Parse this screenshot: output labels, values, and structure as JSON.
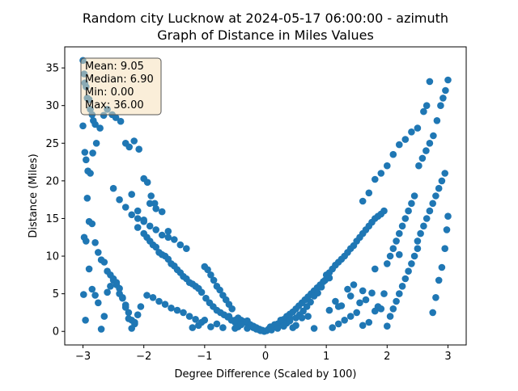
{
  "chart_data": {
    "type": "scatter",
    "title_line1": "Random city Lucknow at 2024-05-17 06:00:00  - azimuth",
    "title_line2": "Graph of Distance in Miles Values",
    "xlabel": "Degree Difference (Scaled by 100)",
    "ylabel": "Distance (Miles)",
    "xlim": [
      -3.3,
      3.3
    ],
    "ylim": [
      -1.8,
      37.8
    ],
    "xticks": [
      -3,
      -2,
      -1,
      0,
      1,
      2,
      3
    ],
    "yticks": [
      0,
      5,
      10,
      15,
      20,
      25,
      30,
      35
    ],
    "grid": false,
    "marker_color": "#1f77b4",
    "stats": {
      "mean": "Mean: 9.05",
      "median": "Median: 6.90",
      "min": "Min: 0.00",
      "max": "Max: 36.00"
    },
    "x": [
      -3.0,
      -2.98,
      -2.97,
      -2.95,
      -2.93,
      -2.9,
      -2.88,
      -2.85,
      -2.83,
      -2.8,
      -3.0,
      -2.97,
      -2.95,
      -2.93,
      -2.9,
      -2.85,
      -2.8,
      -2.75,
      -2.7,
      -2.65,
      -2.6,
      -2.55,
      -2.5,
      -2.45,
      -2.4,
      -2.35,
      -2.3,
      -2.25,
      -2.2,
      -2.15,
      -2.98,
      -2.95,
      -2.9,
      -2.85,
      -2.8,
      -2.75,
      -2.7,
      -2.65,
      -2.6,
      -2.55,
      -2.5,
      -2.45,
      -2.4,
      -2.35,
      -2.3,
      -2.25,
      -2.2,
      -2.15,
      -2.1,
      -2.05,
      -2.99,
      -2.96,
      -2.92,
      -2.88,
      -2.84,
      -2.78,
      -2.72,
      -2.66,
      -2.6,
      -2.52,
      -2.46,
      -2.38,
      -2.3,
      -2.24,
      -2.16,
      -2.08,
      -2.0,
      -1.94,
      -1.88,
      -1.82,
      -2.1,
      -2.0,
      -1.95,
      -1.9,
      -1.85,
      -1.8,
      -1.75,
      -1.7,
      -1.65,
      -1.6,
      -1.55,
      -1.5,
      -1.45,
      -1.4,
      -1.35,
      -1.3,
      -1.25,
      -1.2,
      -1.15,
      -1.1,
      -2.2,
      -2.1,
      -2.0,
      -1.9,
      -1.8,
      -1.7,
      -1.6,
      -1.5,
      -1.4,
      -1.3,
      -1.95,
      -1.85,
      -1.75,
      -1.65,
      -1.55,
      -1.45,
      -1.35,
      -1.25,
      -1.15,
      -1.05,
      -1.0,
      -0.95,
      -0.9,
      -0.85,
      -0.8,
      -0.75,
      -0.7,
      -0.65,
      -0.6,
      -0.55,
      -1.05,
      -0.98,
      -0.92,
      -0.86,
      -0.8,
      -0.74,
      -0.68,
      -0.62,
      -0.56,
      -0.5,
      -0.45,
      -0.4,
      -0.35,
      -0.3,
      -0.25,
      -0.2,
      -0.15,
      -0.1,
      -0.05,
      -0.02,
      -0.5,
      -0.45,
      -0.4,
      -0.35,
      -0.3,
      -0.25,
      -0.2,
      -0.15,
      -0.1,
      -0.08,
      -1.2,
      -1.1,
      -1.0,
      -0.9,
      -0.8,
      -0.7,
      -0.6,
      -0.5,
      -0.4,
      -0.3,
      -2.5,
      -2.4,
      -2.3,
      -2.2,
      -2.1,
      -2.0,
      -1.9,
      -1.8,
      -1.7,
      -1.6,
      0.02,
      0.05,
      0.1,
      0.15,
      0.2,
      0.25,
      0.3,
      0.35,
      0.4,
      0.45,
      0.08,
      0.1,
      0.15,
      0.2,
      0.25,
      0.3,
      0.35,
      0.4,
      0.45,
      0.5,
      0.5,
      0.55,
      0.6,
      0.65,
      0.7,
      0.75,
      0.8,
      0.85,
      0.9,
      0.95,
      0.5,
      0.56,
      0.62,
      0.68,
      0.74,
      0.8,
      0.86,
      0.92,
      0.98,
      1.05,
      1.0,
      1.05,
      1.1,
      1.15,
      1.2,
      1.25,
      1.3,
      1.35,
      1.4,
      1.45,
      1.05,
      1.15,
      1.25,
      1.35,
      1.45,
      1.55,
      1.65,
      1.75,
      1.85,
      1.95,
      1.1,
      1.2,
      1.3,
      1.4,
      1.5,
      1.6,
      1.7,
      1.8,
      1.9,
      2.0,
      1.5,
      1.55,
      1.6,
      1.65,
      1.7,
      1.75,
      1.8,
      1.85,
      1.9,
      1.95,
      2.0,
      2.05,
      2.1,
      2.15,
      2.2,
      2.25,
      2.3,
      2.35,
      2.4,
      2.45,
      2.05,
      2.1,
      2.15,
      2.2,
      2.25,
      2.3,
      2.35,
      2.4,
      2.45,
      2.5,
      2.5,
      2.55,
      2.6,
      2.65,
      2.7,
      2.75,
      2.8,
      2.85,
      2.9,
      2.95,
      2.52,
      2.58,
      2.64,
      2.7,
      2.76,
      2.82,
      2.88,
      2.92,
      2.96,
      3.0,
      1.6,
      1.7,
      1.8,
      1.9,
      2.0,
      2.1,
      2.2,
      2.3,
      2.4,
      2.5,
      2.6,
      2.65,
      2.7,
      2.75,
      2.8,
      2.85,
      2.9,
      2.95,
      2.98,
      3.0,
      0.3,
      0.4,
      0.6,
      0.7,
      0.8,
      1.2,
      1.4,
      1.6,
      1.8,
      2.2
    ],
    "y": [
      36.0,
      34.2,
      33.0,
      32.5,
      31.0,
      30.8,
      29.5,
      28.8,
      28.0,
      27.5,
      27.3,
      23.8,
      22.8,
      17.7,
      14.6,
      14.3,
      11.8,
      10.5,
      9.5,
      9.2,
      8.0,
      7.5,
      6.8,
      6.2,
      5.0,
      4.4,
      3.5,
      2.5,
      1.5,
      1.0,
      12.5,
      12.0,
      8.3,
      5.6,
      4.8,
      3.8,
      0.3,
      2.0,
      5.2,
      6.0,
      7.0,
      6.5,
      5.7,
      4.5,
      3.2,
      1.7,
      0.4,
      1.2,
      2.2,
      3.3,
      4.9,
      1.5,
      21.3,
      21.0,
      23.7,
      25.0,
      27.0,
      28.7,
      29.5,
      28.8,
      28.4,
      27.9,
      25.0,
      24.5,
      25.3,
      24.2,
      20.3,
      19.8,
      18.0,
      17.0,
      13.8,
      13.0,
      12.5,
      12.0,
      11.5,
      11.2,
      10.5,
      10.2,
      10.0,
      9.6,
      9.0,
      8.7,
      8.2,
      7.8,
      7.3,
      7.0,
      6.5,
      6.3,
      6.0,
      5.7,
      15.5,
      15.0,
      14.6,
      14.0,
      13.5,
      12.8,
      12.5,
      12.2,
      11.5,
      11.0,
      4.8,
      4.5,
      4.0,
      3.6,
      3.1,
      2.8,
      2.5,
      2.0,
      1.6,
      1.2,
      8.6,
      8.2,
      7.5,
      6.8,
      6.0,
      5.5,
      4.8,
      4.2,
      3.6,
      3.0,
      5.2,
      4.4,
      3.8,
      3.3,
      2.8,
      2.5,
      2.2,
      1.9,
      1.5,
      1.2,
      1.8,
      1.5,
      1.3,
      1.1,
      0.9,
      0.7,
      0.5,
      0.3,
      0.15,
      0.0,
      0.4,
      0.6,
      0.9,
      1.2,
      1.4,
      0.8,
      0.5,
      0.3,
      0.2,
      0.1,
      0.5,
      0.8,
      1.5,
      0.6,
      1.0,
      0.5,
      2.0,
      1.5,
      0.9,
      0.4,
      19.0,
      17.5,
      16.5,
      18.2,
      16.0,
      14.8,
      17.0,
      16.3,
      15.9,
      13.3,
      0.1,
      0.3,
      0.5,
      0.8,
      1.0,
      1.3,
      1.6,
      2.0,
      2.3,
      2.6,
      0.6,
      0.2,
      0.9,
      0.4,
      1.5,
      0.7,
      1.1,
      1.8,
      0.5,
      0.8,
      3.0,
      3.4,
      3.8,
      4.2,
      4.6,
      5.0,
      5.4,
      5.8,
      6.2,
      6.6,
      1.8,
      2.2,
      2.7,
      3.3,
      3.9,
      4.7,
      5.1,
      5.9,
      6.8,
      7.1,
      7.5,
      7.8,
      8.3,
      8.8,
      9.2,
      9.6,
      10.0,
      10.5,
      11.0,
      11.4,
      2.8,
      4.0,
      3.4,
      5.6,
      6.2,
      3.8,
      4.2,
      5.1,
      3.3,
      5.0,
      0.5,
      1.0,
      1.5,
      2.0,
      2.5,
      0.8,
      1.2,
      2.7,
      3.0,
      0.7,
      12.0,
      12.5,
      13.0,
      13.5,
      14.0,
      14.5,
      15.0,
      15.3,
      15.6,
      16.0,
      9.0,
      10.0,
      11.0,
      12.0,
      13.0,
      14.0,
      15.0,
      16.0,
      17.0,
      18.0,
      2.0,
      3.0,
      4.0,
      5.0,
      6.0,
      7.0,
      8.0,
      9.0,
      10.0,
      11.0,
      12.0,
      13.0,
      14.0,
      15.0,
      16.0,
      17.0,
      18.0,
      19.0,
      20.0,
      21.0,
      22.0,
      23.0,
      24.0,
      25.0,
      26.0,
      28.0,
      30.0,
      31.0,
      32.0,
      33.4,
      17.3,
      18.4,
      20.2,
      21.0,
      22.0,
      23.5,
      24.8,
      25.5,
      26.5,
      27.0,
      29.2,
      30.0,
      33.2,
      2.5,
      4.5,
      6.8,
      8.5,
      11.0,
      13.5,
      15.3,
      0.7,
      1.4,
      1.8,
      2.0,
      0.4,
      3.3,
      4.7,
      5.4,
      8.3,
      10.2
    ]
  }
}
